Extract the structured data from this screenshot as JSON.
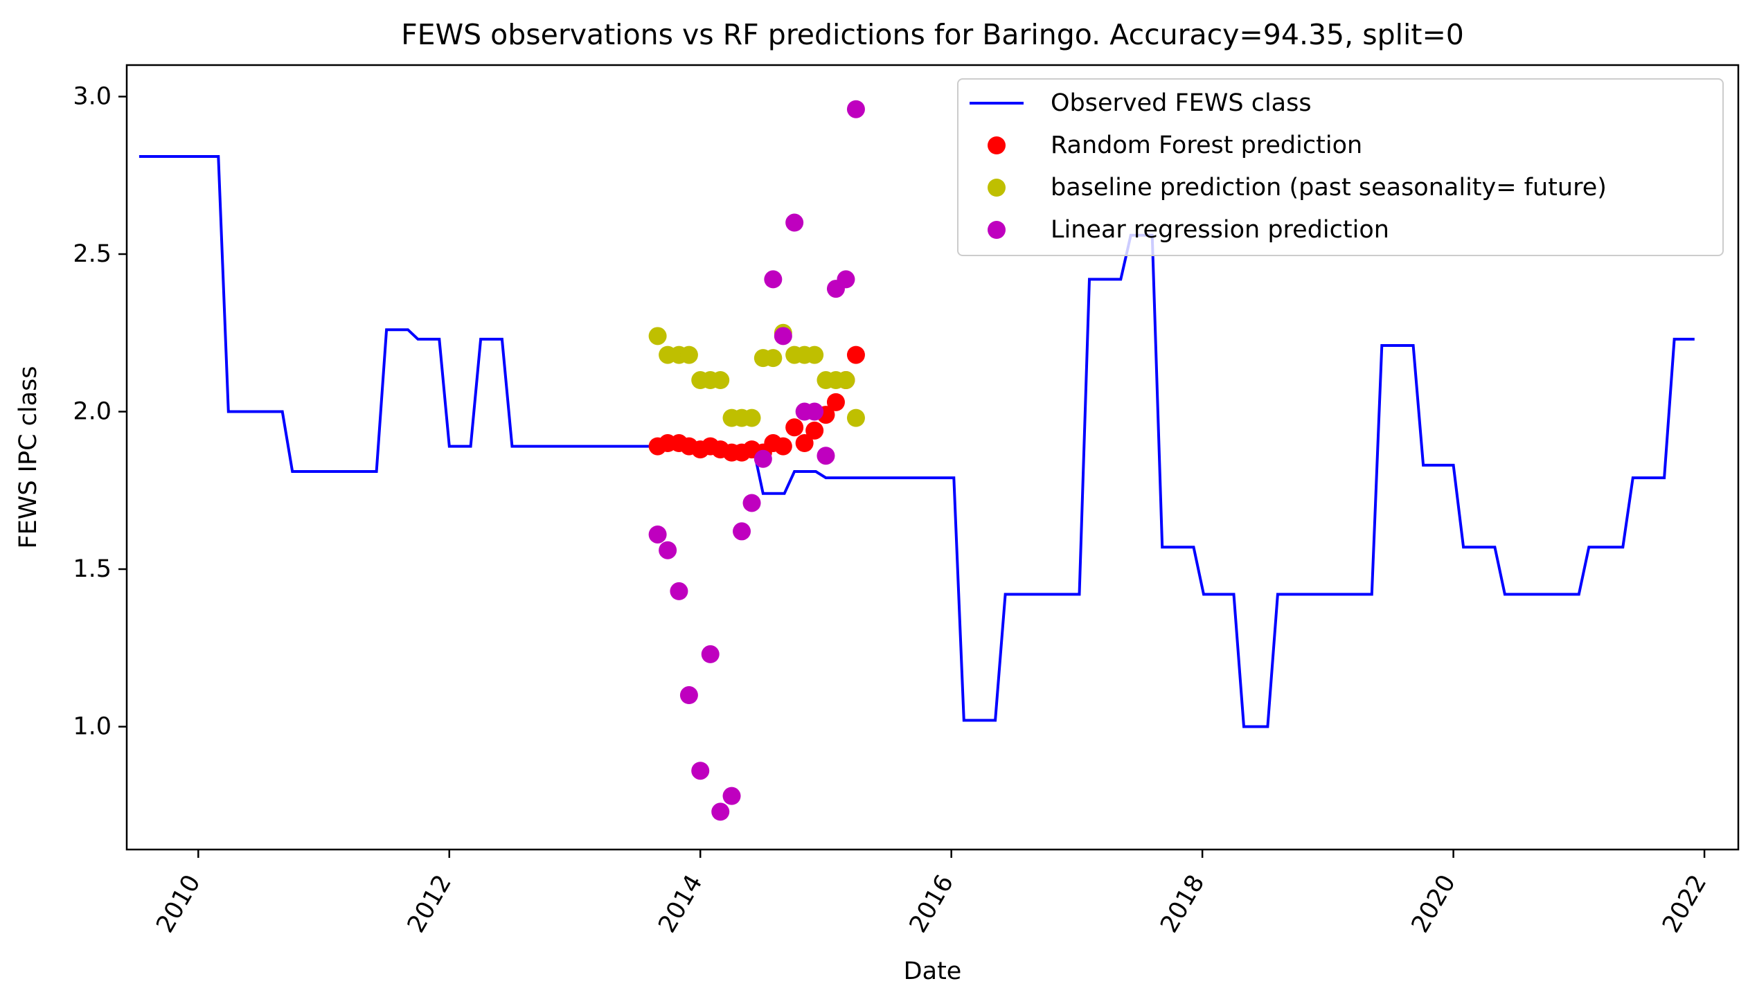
{
  "chart_data": {
    "type": "line",
    "title": "FEWS observations vs RF predictions for Baringo. Accuracy=94.35, split=0",
    "xlabel": "Date",
    "ylabel": "FEWS IPC class",
    "xlim": [
      2009.43,
      2022.27
    ],
    "ylim": [
      0.61,
      3.1
    ],
    "xticks": [
      2010,
      2012,
      2014,
      2016,
      2018,
      2020,
      2022
    ],
    "yticks": [
      1.0,
      1.5,
      2.0,
      2.5,
      3.0
    ],
    "xtick_labels": [
      "2010",
      "2012",
      "2014",
      "2016",
      "2018",
      "2020",
      "2022"
    ],
    "ytick_labels": [
      "1.0",
      "1.5",
      "2.0",
      "2.5",
      "3.0"
    ],
    "grid": false,
    "legend_position": "top-right",
    "series": [
      {
        "name": "Observed FEWS class",
        "kind": "line",
        "color": "#0000ff",
        "x": [
          2009.54,
          2010.16,
          2010.24,
          2010.67,
          2010.75,
          2011.42,
          2011.5,
          2011.67,
          2011.75,
          2011.92,
          2012.0,
          2012.17,
          2012.25,
          2012.42,
          2012.5,
          2013.66,
          2014.42,
          2014.5,
          2014.67,
          2014.75,
          2014.92,
          2015.0,
          2016.02,
          2016.1,
          2016.35,
          2016.43,
          2017.02,
          2017.1,
          2017.35,
          2017.43,
          2017.6,
          2017.68,
          2017.93,
          2018.01,
          2018.25,
          2018.33,
          2018.52,
          2018.6,
          2018.85,
          2018.93,
          2019.35,
          2019.43,
          2019.68,
          2019.76,
          2020.0,
          2020.08,
          2020.33,
          2020.41,
          2021.0,
          2021.08,
          2021.35,
          2021.43,
          2021.68,
          2021.76,
          2021.91
        ],
        "y": [
          2.81,
          2.81,
          2.0,
          2.0,
          1.81,
          1.81,
          2.26,
          2.26,
          2.23,
          2.23,
          1.89,
          1.89,
          2.23,
          2.23,
          1.89,
          1.89,
          1.89,
          1.74,
          1.74,
          1.81,
          1.81,
          1.79,
          1.79,
          1.02,
          1.02,
          1.42,
          1.42,
          2.42,
          2.42,
          2.56,
          2.56,
          1.57,
          1.57,
          1.42,
          1.42,
          1.0,
          1.0,
          1.42,
          1.42,
          1.42,
          1.42,
          2.21,
          2.21,
          1.83,
          1.83,
          1.57,
          1.57,
          1.42,
          1.42,
          1.57,
          1.57,
          1.79,
          1.79,
          2.23,
          2.23
        ]
      },
      {
        "name": "Random Forest prediction",
        "kind": "scatter",
        "color": "#ff0000",
        "x": [
          2013.66,
          2013.74,
          2013.83,
          2013.91,
          2014.0,
          2014.08,
          2014.16,
          2014.25,
          2014.33,
          2014.41,
          2014.5,
          2014.58,
          2014.66,
          2014.75,
          2014.83,
          2014.91,
          2015.0,
          2015.08,
          2015.16,
          2015.24
        ],
        "y": [
          1.89,
          1.9,
          1.9,
          1.89,
          1.88,
          1.89,
          1.88,
          1.87,
          1.87,
          1.88,
          1.87,
          1.9,
          1.89,
          1.95,
          1.9,
          1.94,
          1.99,
          2.03,
          2.1,
          2.18
        ]
      },
      {
        "name": "baseline prediction (past seasonality= future)",
        "kind": "scatter",
        "color": "#bfbf00",
        "x": [
          2013.66,
          2013.74,
          2013.83,
          2013.91,
          2014.0,
          2014.08,
          2014.16,
          2014.25,
          2014.33,
          2014.41,
          2014.5,
          2014.58,
          2014.66,
          2014.75,
          2014.83,
          2014.91,
          2015.0,
          2015.08,
          2015.16,
          2015.24
        ],
        "y": [
          2.24,
          2.18,
          2.18,
          2.18,
          2.1,
          2.1,
          2.1,
          1.98,
          1.98,
          1.98,
          2.17,
          2.17,
          2.25,
          2.18,
          2.18,
          2.18,
          2.1,
          2.1,
          2.1,
          1.98
        ]
      },
      {
        "name": "Linear regression prediction",
        "kind": "scatter",
        "color": "#bf00bf",
        "x": [
          2013.66,
          2013.74,
          2013.83,
          2013.91,
          2014.0,
          2014.08,
          2014.16,
          2014.25,
          2014.33,
          2014.41,
          2014.5,
          2014.58,
          2014.66,
          2014.75,
          2014.83,
          2014.91,
          2015.0,
          2015.08,
          2015.16,
          2015.24
        ],
        "y": [
          1.61,
          1.56,
          1.43,
          1.1,
          0.86,
          1.23,
          0.73,
          0.78,
          1.62,
          1.71,
          1.85,
          2.42,
          2.24,
          2.6,
          2.0,
          2.0,
          1.86,
          2.39,
          2.42,
          2.96
        ]
      }
    ]
  }
}
